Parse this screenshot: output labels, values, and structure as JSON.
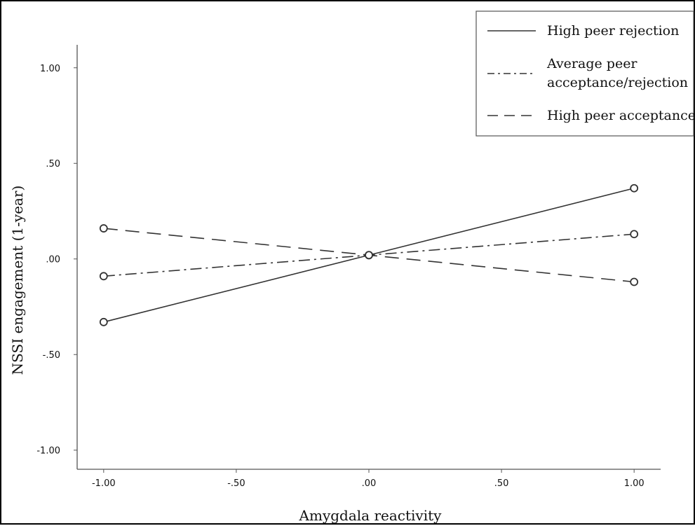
{
  "chart_data": {
    "type": "line",
    "xlabel": "Amygdala reactivity",
    "ylabel": "NSSI engagement (1-year)",
    "x": [
      -1.0,
      0.0,
      1.0
    ],
    "xlim": [
      -1.1,
      1.1
    ],
    "ylim": [
      -1.1,
      1.12
    ],
    "x_ticks": [
      -1.0,
      -0.5,
      0.0,
      0.5,
      1.0
    ],
    "x_tick_labels": [
      "-1.00",
      "-.50",
      ".00",
      ".50",
      "1.00"
    ],
    "y_ticks": [
      -1.0,
      -0.5,
      0.0,
      0.5,
      1.0
    ],
    "y_tick_labels": [
      "-1.00",
      "-.50",
      ".00",
      ".50",
      "1.00"
    ],
    "grid": false,
    "legend_position": "top-right",
    "series": [
      {
        "name": "High peer rejection",
        "values": [
          -0.33,
          0.02,
          0.37
        ],
        "style": "solid"
      },
      {
        "name": "Average peer acceptance/rejection",
        "values": [
          -0.09,
          0.02,
          0.13
        ],
        "style": "dashdot"
      },
      {
        "name": "High peer acceptance",
        "values": [
          0.16,
          0.02,
          -0.12
        ],
        "style": "dashed"
      }
    ],
    "colors": {
      "line": "#333333",
      "marker": "#333333",
      "axis": "#555555"
    }
  }
}
